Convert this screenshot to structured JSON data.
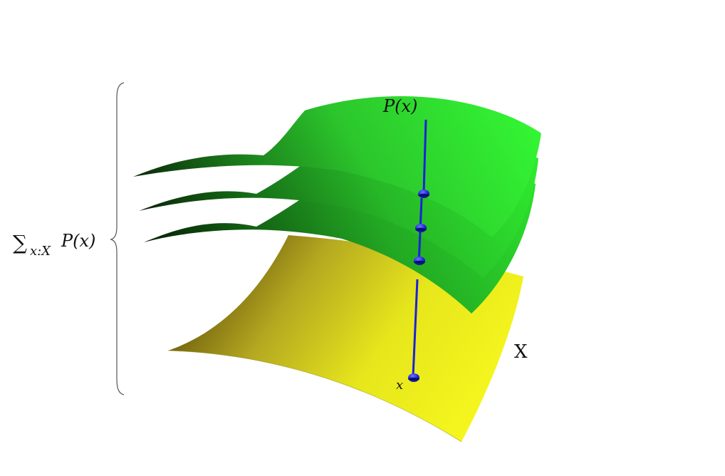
{
  "labels": {
    "sum_symbol": "∑",
    "sum_subscript": "x:X",
    "sum_term": "P(x)",
    "fiber_label": "P(x)",
    "base_label": "X",
    "point_label": "x"
  },
  "colors": {
    "base_surface": "#e8e81a",
    "base_surface_dark": "#7a6a10",
    "fiber_surface": "#2fd62f",
    "fiber_surface_dark": "#0b3a0b",
    "fiber_line": "#1b22d8",
    "point_marker": "#1b22d8",
    "brace": "#555555"
  },
  "layer_count": 3
}
